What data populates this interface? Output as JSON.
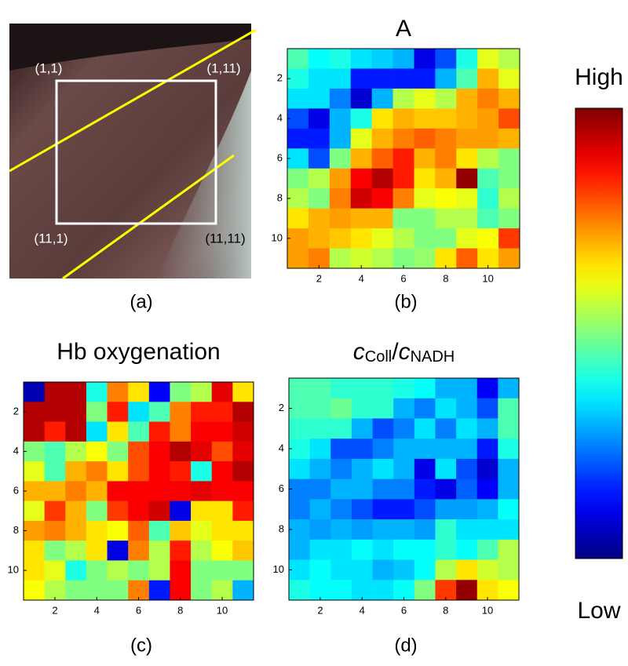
{
  "photo": {
    "label": "(a)",
    "corners": [
      "(1,1)",
      "(1,11)",
      "(11,1)",
      "(11,11)"
    ]
  },
  "colorbar": {
    "colormap": "jet",
    "high": "High",
    "low": "Low"
  },
  "chart_data": [
    {
      "type": "heatmap",
      "title": "A",
      "label": "(b)",
      "colormap": "jet",
      "zlim": [
        0,
        1
      ],
      "xlim": [
        0.5,
        11.5
      ],
      "ylim": [
        0.5,
        11.5
      ],
      "y_reversed": true,
      "xticks": [
        2,
        4,
        6,
        8,
        10
      ],
      "yticks": [
        2,
        4,
        6,
        8,
        10
      ],
      "z": [
        [
          0.45,
          0.38,
          0.4,
          0.35,
          0.33,
          0.3,
          0.1,
          0.2,
          0.4,
          0.6,
          0.55
        ],
        [
          0.4,
          0.35,
          0.35,
          0.15,
          0.15,
          0.15,
          0.15,
          0.3,
          0.45,
          0.7,
          0.6
        ],
        [
          0.35,
          0.35,
          0.25,
          0.08,
          0.3,
          0.55,
          0.6,
          0.55,
          0.7,
          0.75,
          0.7
        ],
        [
          0.2,
          0.1,
          0.3,
          0.4,
          0.65,
          0.7,
          0.68,
          0.68,
          0.7,
          0.72,
          0.8
        ],
        [
          0.15,
          0.15,
          0.3,
          0.6,
          0.7,
          0.75,
          0.78,
          0.75,
          0.72,
          0.72,
          0.7
        ],
        [
          0.35,
          0.2,
          0.5,
          0.7,
          0.78,
          0.85,
          0.7,
          0.75,
          0.65,
          0.55,
          0.5
        ],
        [
          0.5,
          0.55,
          0.72,
          0.88,
          0.95,
          0.85,
          0.65,
          0.7,
          0.98,
          0.45,
          0.5
        ],
        [
          0.55,
          0.5,
          0.75,
          0.92,
          0.88,
          0.75,
          0.6,
          0.62,
          0.6,
          0.42,
          0.55
        ],
        [
          0.65,
          0.7,
          0.72,
          0.7,
          0.7,
          0.5,
          0.5,
          0.55,
          0.55,
          0.45,
          0.5
        ],
        [
          0.72,
          0.7,
          0.68,
          0.65,
          0.6,
          0.55,
          0.5,
          0.5,
          0.6,
          0.62,
          0.82
        ],
        [
          0.72,
          0.75,
          0.55,
          0.58,
          0.55,
          0.5,
          0.52,
          0.65,
          0.78,
          0.65,
          0.72
        ]
      ]
    },
    {
      "type": "heatmap",
      "title": "Hb oxygenation",
      "label": "(c)",
      "colormap": "jet",
      "zlim": [
        0,
        1
      ],
      "xlim": [
        0.5,
        11.5
      ],
      "ylim": [
        0.5,
        11.5
      ],
      "y_reversed": true,
      "xticks": [
        2,
        4,
        6,
        8,
        10
      ],
      "yticks": [
        2,
        4,
        6,
        8,
        10
      ],
      "z": [
        [
          0.05,
          0.95,
          0.95,
          0.4,
          0.75,
          0.65,
          0.12,
          0.5,
          0.55,
          0.9,
          0.65
        ],
        [
          0.95,
          0.95,
          0.95,
          0.5,
          0.85,
          0.35,
          0.45,
          0.75,
          0.85,
          0.85,
          0.95
        ],
        [
          0.95,
          0.85,
          0.95,
          0.35,
          0.65,
          0.45,
          0.85,
          0.75,
          0.88,
          0.88,
          0.92
        ],
        [
          0.5,
          0.45,
          0.55,
          0.62,
          0.5,
          0.8,
          0.88,
          0.95,
          0.9,
          0.8,
          0.9
        ],
        [
          0.6,
          0.45,
          0.7,
          0.75,
          0.65,
          0.8,
          0.88,
          0.85,
          0.4,
          0.88,
          0.95
        ],
        [
          0.7,
          0.7,
          0.75,
          0.7,
          0.88,
          0.88,
          0.88,
          0.88,
          0.9,
          0.88,
          0.88
        ],
        [
          0.6,
          0.82,
          0.7,
          0.5,
          0.82,
          0.88,
          0.92,
          0.1,
          0.65,
          0.65,
          0.85
        ],
        [
          0.72,
          0.75,
          0.7,
          0.65,
          0.62,
          0.78,
          0.45,
          0.68,
          0.6,
          0.65,
          0.65
        ],
        [
          0.65,
          0.5,
          0.55,
          0.65,
          0.1,
          0.75,
          0.55,
          0.85,
          0.55,
          0.62,
          0.68
        ],
        [
          0.65,
          0.6,
          0.4,
          0.5,
          0.55,
          0.5,
          0.55,
          0.88,
          0.5,
          0.5,
          0.5
        ],
        [
          0.62,
          0.55,
          0.5,
          0.5,
          0.5,
          0.75,
          0.15,
          0.88,
          0.5,
          0.55,
          0.3
        ]
      ]
    },
    {
      "type": "heatmap",
      "title_parts": [
        {
          "text": "c",
          "style": "italic"
        },
        {
          "text": "Coll",
          "style": "sub"
        },
        {
          "text": "/",
          "style": "normal"
        },
        {
          "text": "c",
          "style": "italic"
        },
        {
          "text": "NADH",
          "style": "sub"
        }
      ],
      "label": "(d)",
      "colormap": "jet",
      "zlim": [
        0,
        1
      ],
      "xlim": [
        0.5,
        11.5
      ],
      "ylim": [
        0.5,
        11.5
      ],
      "y_reversed": true,
      "xticks": [
        2,
        4,
        6,
        8,
        10
      ],
      "yticks": [
        2,
        4,
        6,
        8,
        10
      ],
      "z": [
        [
          0.45,
          0.45,
          0.42,
          0.42,
          0.42,
          0.4,
          0.38,
          0.3,
          0.3,
          0.12,
          0.3
        ],
        [
          0.45,
          0.45,
          0.48,
          0.42,
          0.42,
          0.3,
          0.25,
          0.35,
          0.3,
          0.2,
          0.45
        ],
        [
          0.42,
          0.42,
          0.42,
          0.3,
          0.2,
          0.25,
          0.35,
          0.25,
          0.35,
          0.3,
          0.45
        ],
        [
          0.4,
          0.35,
          0.2,
          0.2,
          0.25,
          0.3,
          0.3,
          0.3,
          0.3,
          0.15,
          0.4
        ],
        [
          0.35,
          0.3,
          0.25,
          0.3,
          0.35,
          0.3,
          0.1,
          0.35,
          0.2,
          0.08,
          0.3
        ],
        [
          0.25,
          0.25,
          0.3,
          0.3,
          0.25,
          0.25,
          0.15,
          0.1,
          0.22,
          0.12,
          0.3
        ],
        [
          0.25,
          0.3,
          0.25,
          0.2,
          0.15,
          0.15,
          0.2,
          0.28,
          0.28,
          0.3,
          0.38
        ],
        [
          0.3,
          0.28,
          0.3,
          0.28,
          0.3,
          0.3,
          0.28,
          0.42,
          0.35,
          0.35,
          0.35
        ],
        [
          0.3,
          0.35,
          0.35,
          0.38,
          0.35,
          0.38,
          0.38,
          0.42,
          0.38,
          0.45,
          0.55
        ],
        [
          0.35,
          0.38,
          0.35,
          0.35,
          0.3,
          0.32,
          0.38,
          0.55,
          0.65,
          0.58,
          0.55
        ],
        [
          0.4,
          0.38,
          0.38,
          0.35,
          0.35,
          0.38,
          0.5,
          0.82,
          0.98,
          0.65,
          0.62
        ]
      ]
    }
  ]
}
